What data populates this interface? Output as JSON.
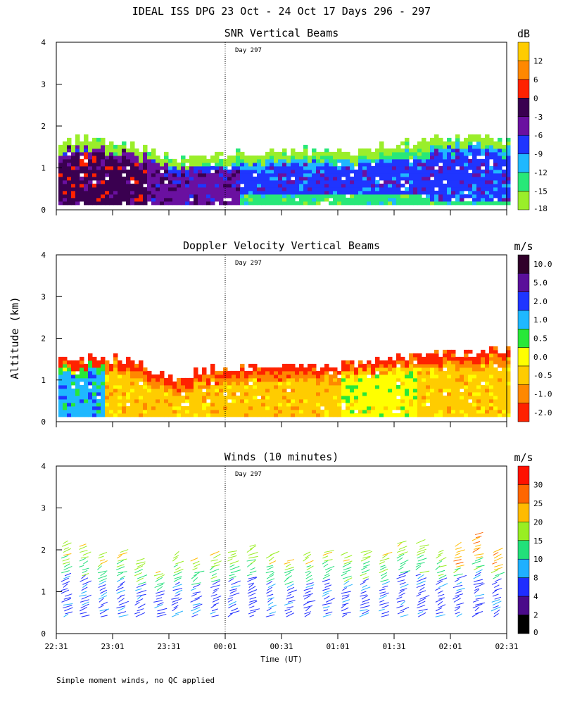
{
  "figure": {
    "title": "IDEAL ISS DPG  23 Oct - 24 Oct 17 Days 296 - 297",
    "xlabel": "Time (UT)",
    "ylabel": "Altitude (km)",
    "footnote": "Simple moment winds, no QC applied",
    "x_ticks": [
      "22:31",
      "23:01",
      "23:31",
      "00:01",
      "00:31",
      "01:01",
      "01:31",
      "02:01",
      "02:31"
    ],
    "y_ticks": [
      "0",
      "1",
      "2",
      "3",
      "4"
    ],
    "day_marker": "Day 297"
  },
  "chart_data": [
    {
      "type": "heatmap",
      "title": "SNR Vertical Beams",
      "units": "dB",
      "xlim_hours": [
        0,
        4
      ],
      "ylim_km": [
        0,
        4
      ],
      "day_boundary_hour": 1.5,
      "colorbar": {
        "labels": [
          "12",
          "6",
          "0",
          "-3",
          "-6",
          "-9",
          "-12",
          "-15",
          "-18"
        ],
        "colors": [
          "#ffcc00",
          "#ff8800",
          "#ff2200",
          "#3a0050",
          "#6a10a0",
          "#1f35ff",
          "#1fb8ff",
          "#28e878",
          "#9aee2a"
        ]
      },
      "top_km_by_time": [
        [
          0.0,
          1.6
        ],
        [
          0.4,
          1.6
        ],
        [
          0.8,
          1.4
        ],
        [
          1.0,
          1.2
        ],
        [
          1.5,
          1.3
        ],
        [
          2.0,
          1.4
        ],
        [
          2.5,
          1.3
        ],
        [
          3.0,
          1.5
        ],
        [
          3.5,
          1.7
        ],
        [
          4.0,
          1.6
        ]
      ],
      "regions": [
        {
          "t": [
            0.0,
            0.8
          ],
          "z": [
            0.1,
            1.3
          ],
          "level": 2
        },
        {
          "t": [
            0.0,
            1.0
          ],
          "z": [
            0.1,
            1.5
          ],
          "level": 3
        },
        {
          "t": [
            0.8,
            1.6
          ],
          "z": [
            0.1,
            1.0
          ],
          "level": 4
        },
        {
          "t": [
            1.6,
            4.0
          ],
          "z": [
            0.3,
            1.2
          ],
          "level": 5
        },
        {
          "t": [
            3.3,
            4.0
          ],
          "z": [
            0.2,
            1.6
          ],
          "level": 5
        }
      ]
    },
    {
      "type": "heatmap",
      "title": "Doppler Velocity Vertical Beams",
      "units": "m/s",
      "xlim_hours": [
        0,
        4
      ],
      "ylim_km": [
        0,
        4
      ],
      "day_boundary_hour": 1.5,
      "colorbar": {
        "labels": [
          "10.0",
          "5.0",
          "2.0",
          "1.0",
          "0.5",
          "0.0",
          "-0.5",
          "-1.0",
          "-2.0"
        ],
        "colors": [
          "#30002a",
          "#5a0f9a",
          "#1f35ff",
          "#1fb8ff",
          "#28e838",
          "#ffff00",
          "#ffcc00",
          "#ff8800",
          "#ff2200"
        ]
      },
      "top_km_by_time": [
        [
          0.0,
          1.5
        ],
        [
          0.5,
          1.5
        ],
        [
          1.0,
          1.0
        ],
        [
          1.5,
          1.3
        ],
        [
          2.0,
          1.3
        ],
        [
          2.5,
          1.3
        ],
        [
          3.0,
          1.5
        ],
        [
          3.5,
          1.6
        ],
        [
          4.0,
          1.7
        ]
      ],
      "regions": [
        {
          "t": [
            0.0,
            0.4
          ],
          "z": [
            0.1,
            1.5
          ],
          "level": 3
        },
        {
          "t": [
            0.4,
            1.5
          ],
          "z": [
            0.1,
            1.4
          ],
          "level": 6
        },
        {
          "t": [
            1.5,
            2.5
          ],
          "z": [
            0.1,
            1.3
          ],
          "level": 6
        },
        {
          "t": [
            2.5,
            3.2
          ],
          "z": [
            0.1,
            1.3
          ],
          "level": 5
        },
        {
          "t": [
            3.2,
            4.0
          ],
          "z": [
            0.1,
            1.7
          ],
          "level": 6
        }
      ]
    },
    {
      "type": "barbs",
      "title": "Winds (10 minutes)",
      "units": "m/s",
      "xlim_hours": [
        0,
        4
      ],
      "ylim_km": [
        0,
        4
      ],
      "day_boundary_hour": 1.5,
      "colorbar": {
        "labels": [
          "30",
          "25",
          "20",
          "15",
          "10",
          "8",
          "4",
          "2",
          "0"
        ],
        "colors": [
          "#ff1100",
          "#ff6600",
          "#ffbb00",
          "#99ee22",
          "#22e07a",
          "#1fb0ff",
          "#1f2dff",
          "#4a0a8a",
          "#000000"
        ]
      },
      "profile_times_hours": [
        0.06,
        0.22,
        0.38,
        0.55,
        0.71,
        0.88,
        1.04,
        1.21,
        1.38,
        1.54,
        1.71,
        1.88,
        2.04,
        2.21,
        2.38,
        2.54,
        2.71,
        2.88,
        3.04,
        3.21,
        3.38,
        3.54,
        3.71,
        3.88
      ],
      "profile_top_km": [
        2.2,
        2.1,
        1.9,
        2.0,
        1.8,
        1.5,
        1.9,
        1.8,
        1.9,
        2.0,
        2.1,
        1.9,
        1.8,
        1.9,
        2.0,
        1.9,
        2.0,
        1.9,
        2.2,
        2.2,
        2.0,
        2.1,
        2.4,
        2.0
      ]
    }
  ]
}
